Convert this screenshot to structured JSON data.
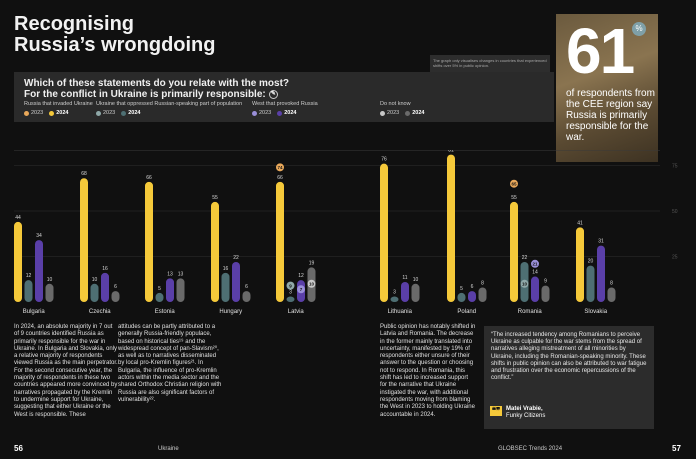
{
  "page_title_line1": "Recognising",
  "page_title_line2": "Russia’s wrongdoing",
  "hero": {
    "number": "61",
    "percent_symbol": "%",
    "text": "of respondents from the CEE region say Russia is primarily responsible for the war."
  },
  "graph_note": "The graph only visualises changes in countries that experienced shifts over 5% in public opinion.",
  "question_line1": "Which of these statements do you relate with the most?",
  "question_line2": "For the conflict in Ukraine is primarily responsible:",
  "question_icon": "info-icon",
  "legend": [
    {
      "label": "Russia that invaded Ukraine",
      "y2023": "2023",
      "y2024": "2024",
      "c2023": "#e9a85a",
      "c2024": "#f5c93a"
    },
    {
      "label": "Ukraine that oppressed Russian-speaking part of population",
      "y2023": "2023",
      "y2024": "2024",
      "c2023": "#8fa8a8",
      "c2024": "#4e6f73"
    },
    {
      "label": "West that provoked Russia",
      "y2023": "2023",
      "y2024": "2024",
      "c2023": "#9a8fd8",
      "c2024": "#5a3fa8"
    },
    {
      "label": "Do not know",
      "y2023": "2023",
      "y2024": "2024",
      "c2023": "#c8c8c8",
      "c2024": "#6a6a6a"
    }
  ],
  "chart_data": {
    "type": "bar",
    "categories": [
      "Bulgaria",
      "Czechia",
      "Estonia",
      "Hungary",
      "Latvia",
      "Lithuania",
      "Poland",
      "Romania",
      "Slovakia"
    ],
    "series": [
      {
        "name": "Russia that invaded Ukraine",
        "values": [
          44,
          68,
          66,
          55,
          66,
          76,
          81,
          55,
          41
        ],
        "color": "#f5c93a"
      },
      {
        "name": "Ukraine that oppressed Russian-speaking part of population",
        "values": [
          12,
          10,
          5,
          16,
          3,
          3,
          5,
          22,
          20
        ],
        "color": "#4e6f73"
      },
      {
        "name": "West that provoked Russia",
        "values": [
          34,
          16,
          13,
          22,
          12,
          11,
          6,
          14,
          31
        ],
        "color": "#5a3fa8"
      },
      {
        "name": "Do not know",
        "values": [
          10,
          6,
          13,
          6,
          19,
          10,
          8,
          9,
          8
        ],
        "color": "#6a6a6a"
      }
    ],
    "markers_2023": [
      {
        "category": "Latvia",
        "series": "Russia that invaded Ukraine",
        "value": 74,
        "color": "#e9a85a"
      },
      {
        "category": "Latvia",
        "series": "Ukraine that oppressed Russian-speaking part of population",
        "value": 9,
        "color": "#8fa8a8"
      },
      {
        "category": "Latvia",
        "series": "West that provoked Russia",
        "value": 7,
        "color": "#9a8fd8"
      },
      {
        "category": "Latvia",
        "series": "Do not know",
        "value": 10,
        "color": "#c8c8c8"
      },
      {
        "category": "Romania",
        "series": "Russia that invaded Ukraine",
        "value": 65,
        "color": "#e9a85a"
      },
      {
        "category": "Romania",
        "series": "Ukraine that oppressed Russian-speaking part of population",
        "value": 10,
        "color": "#8fa8a8"
      },
      {
        "category": "Romania",
        "series": "West that provoked Russia",
        "value": 21,
        "color": "#9a8fd8"
      }
    ],
    "y_right_ticks": [
      75,
      50,
      25
    ],
    "ylim": [
      0,
      90
    ]
  },
  "col1": "In 2024, an absolute majority in 7 out of 9 countries identified Russia as primarily responsible for the war in Ukraine. In Bulgaria and Slovakia, only a relative majority of respondents viewed Russia as the main perpetrator. For the second consecutive year, the majority of respondents in these two countries appeared more convinced by narratives propagated by the Kremlin to undermine support for Ukraine, suggesting that either Ukraine or the West is responsible. These",
  "col2": "attitudes can be partly attributed to a generally Russia-friendly populace, based on historical ties¹⁹ and the widespread concept of pan-Slavism²⁰, as well as to narratives disseminated by local pro-Kremlin figures²¹. In Bulgaria, the influence of pro-Kremlin actors within the media sector and the shared Orthodox Christian religion with Russia are also significant factors of vulnerability²².",
  "col3": "Public opinion has notably shifted in Latvia and Romania. The decrease in the former mainly translated into uncertainty, manifested by 19% of respondents either unsure of their answer to the question or choosing not to respond. In Romania, this shift has led to increased support for the narrative that Ukraine instigated the war, with additional respondents moving from blaming the West in 2023 to holding Ukraine accountable in 2024.",
  "quote_text": "“The increased tendency among Romanians to perceive Ukraine as culpable for the war stems from the spread of narratives alleging mistreatment of all minorities by Ukraine, including the Romanian-speaking minority. These shifts in public opinion can also be attributed to war fatigue and frustration over the economic repercussions of the conflict.”",
  "quote_mark": "❝❞",
  "quote_author_name": "Matei Vrabie,",
  "quote_author_org": "Funky Citizens",
  "page_left": "56",
  "page_right": "57",
  "footer_left": "Ukraine",
  "footer_right": "GLOBSEC Trends 2024"
}
